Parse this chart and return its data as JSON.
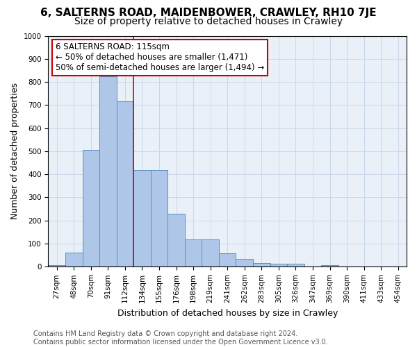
{
  "title": "6, SALTERNS ROAD, MAIDENBOWER, CRAWLEY, RH10 7JE",
  "subtitle": "Size of property relative to detached houses in Crawley",
  "xlabel": "Distribution of detached houses by size in Crawley",
  "ylabel": "Number of detached properties",
  "bar_values": [
    8,
    60,
    505,
    825,
    715,
    418,
    418,
    230,
    118,
    118,
    57,
    35,
    15,
    12,
    12,
    0,
    8,
    0,
    0,
    0,
    0
  ],
  "bar_labels": [
    "27sqm",
    "48sqm",
    "70sqm",
    "91sqm",
    "112sqm",
    "134sqm",
    "155sqm",
    "176sqm",
    "198sqm",
    "219sqm",
    "241sqm",
    "262sqm",
    "283sqm",
    "305sqm",
    "326sqm",
    "347sqm",
    "369sqm",
    "390sqm",
    "411sqm",
    "433sqm",
    "454sqm"
  ],
  "bar_color": "#aec6e8",
  "bar_edge_color": "#5a8fc2",
  "vline_x": 4.5,
  "vline_color": "#cc0000",
  "annotation_text": "6 SALTERNS ROAD: 115sqm\n← 50% of detached houses are smaller (1,471)\n50% of semi-detached houses are larger (1,494) →",
  "annotation_box_color": "white",
  "annotation_box_edge": "#cc0000",
  "ylim": [
    0,
    1000
  ],
  "yticks": [
    0,
    100,
    200,
    300,
    400,
    500,
    600,
    700,
    800,
    900,
    1000
  ],
  "grid_color": "#c8d8e8",
  "bg_color": "#eaf0f8",
  "footer_text": "Contains HM Land Registry data © Crown copyright and database right 2024.\nContains public sector information licensed under the Open Government Licence v3.0.",
  "title_fontsize": 11,
  "subtitle_fontsize": 10,
  "xlabel_fontsize": 9,
  "ylabel_fontsize": 9,
  "tick_fontsize": 7.5,
  "annotation_fontsize": 8.5,
  "footer_fontsize": 7
}
